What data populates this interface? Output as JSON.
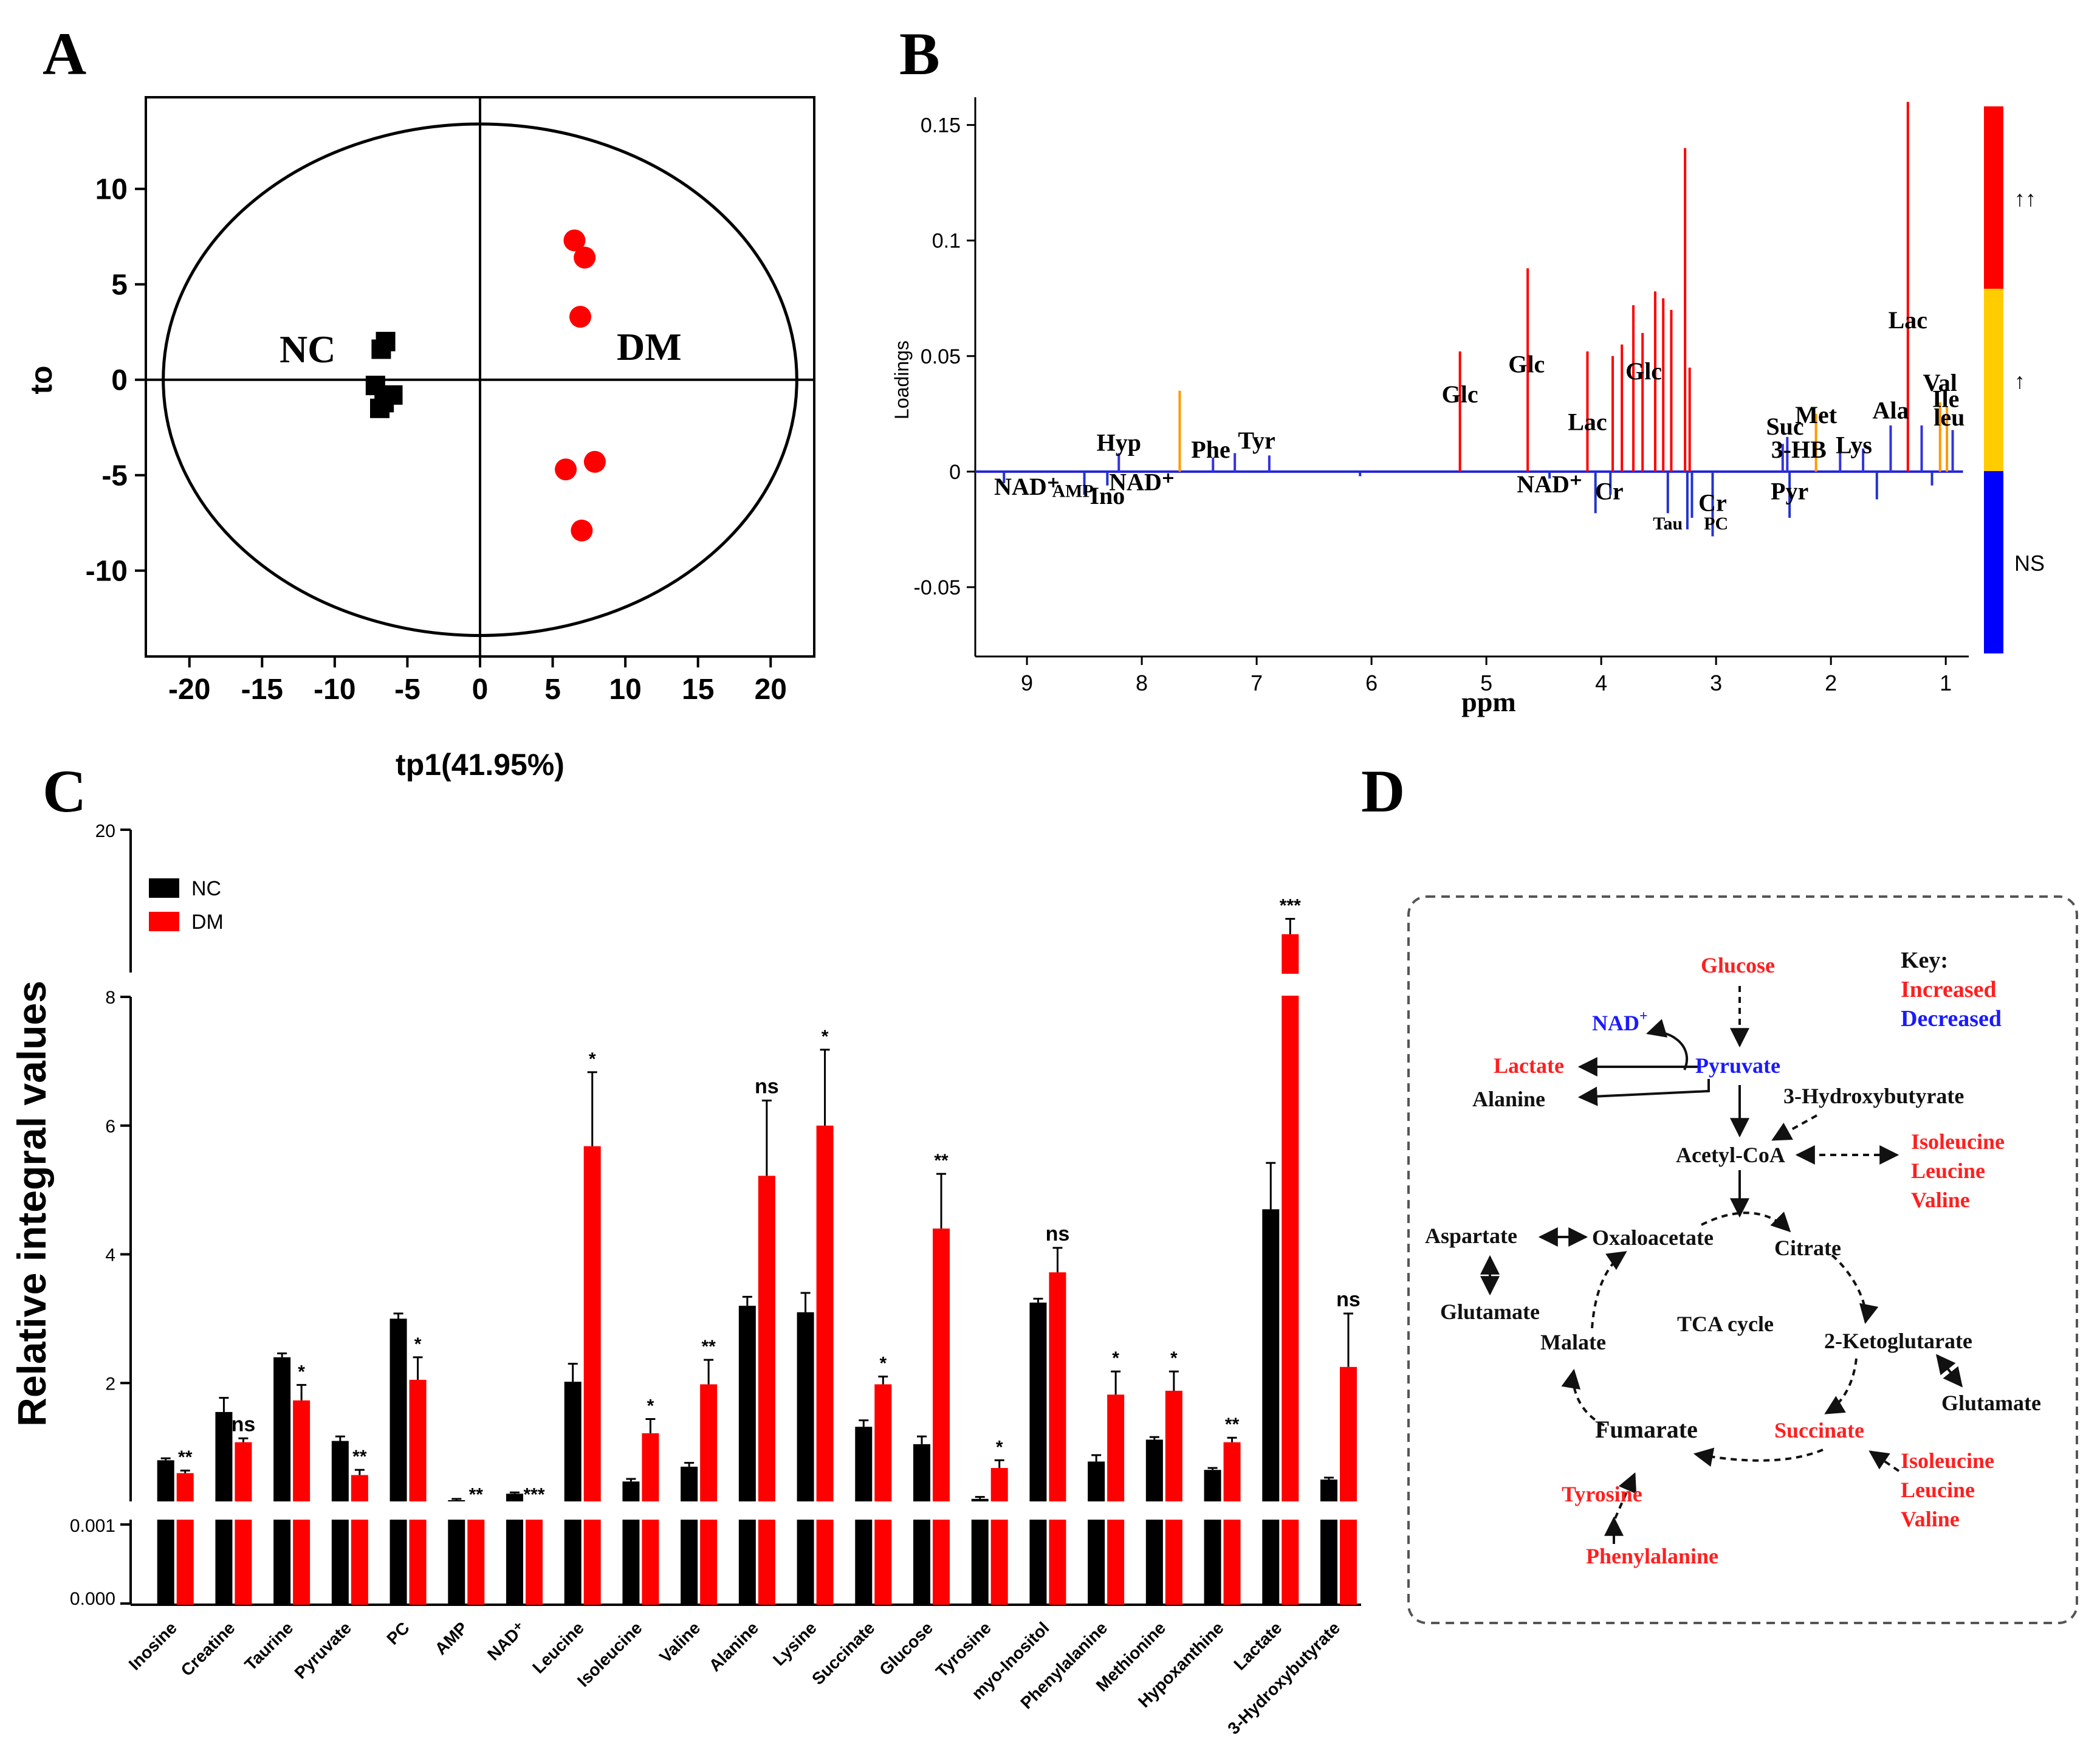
{
  "panels": {
    "A": "A",
    "B": "B",
    "C": "C",
    "D": "D"
  },
  "chart_data": [
    {
      "panel": "A",
      "type": "scatter",
      "xlabel": "tp1(41.95%)",
      "ylabel": "to",
      "xlim": [
        -23,
        23
      ],
      "ylim": [
        -14.5,
        14.8
      ],
      "xticks": [
        -20,
        -15,
        -10,
        -5,
        0,
        5,
        10,
        15,
        20
      ],
      "yticks": [
        -10,
        -5,
        0,
        5,
        10
      ],
      "ellipse": {
        "rx": 21.8,
        "ry": 13.4
      },
      "group_labels": {
        "nc": "NC",
        "dm": "DM"
      },
      "series": [
        {
          "name": "NC",
          "marker": "square",
          "color": "#000000",
          "points": [
            [
              -6.5,
              2.0
            ],
            [
              -6.8,
              1.6
            ],
            [
              -7.2,
              -0.3
            ],
            [
              -6.0,
              -0.8
            ],
            [
              -6.6,
              -1.2
            ],
            [
              -6.9,
              -1.5
            ]
          ]
        },
        {
          "name": "DM",
          "marker": "circle",
          "color": "#ff0000",
          "points": [
            [
              6.5,
              7.3
            ],
            [
              7.2,
              6.4
            ],
            [
              6.9,
              3.3
            ],
            [
              5.9,
              -4.7
            ],
            [
              7.9,
              -4.3
            ],
            [
              7.0,
              -7.9
            ]
          ]
        }
      ]
    },
    {
      "panel": "B",
      "type": "line",
      "xlabel": "ppm",
      "ylabel": "Loadings",
      "xlim": [
        9.45,
        0.8
      ],
      "ylim": [
        -0.08,
        0.162
      ],
      "xticks": [
        9,
        8,
        7,
        6,
        5,
        4,
        3,
        2,
        1
      ],
      "yticks": [
        -0.05,
        0,
        0.05,
        0.1,
        0.15
      ],
      "ytick_labels": [
        "-0.05",
        "0",
        "0.05",
        "0.1",
        "0.15"
      ],
      "colorbar": {
        "labels": [
          "↑↑",
          "↑",
          "NS"
        ],
        "colors": [
          "#ff0000",
          "#ffcc00",
          "#0000ff"
        ]
      },
      "peaks": [
        {
          "ppm": 8.2,
          "h": 0.008
        },
        {
          "ppm": 7.67,
          "h": 0.035
        },
        {
          "ppm": 7.38,
          "h": 0.006
        },
        {
          "ppm": 7.19,
          "h": 0.008
        },
        {
          "ppm": 6.89,
          "h": 0.007
        },
        {
          "ppm": 5.23,
          "h": 0.052
        },
        {
          "ppm": 4.64,
          "h": 0.088
        },
        {
          "ppm": 4.12,
          "h": 0.052
        },
        {
          "ppm": 3.9,
          "h": 0.05
        },
        {
          "ppm": 3.82,
          "h": 0.055
        },
        {
          "ppm": 3.72,
          "h": 0.072
        },
        {
          "ppm": 3.64,
          "h": 0.06
        },
        {
          "ppm": 3.53,
          "h": 0.078
        },
        {
          "ppm": 3.46,
          "h": 0.075
        },
        {
          "ppm": 3.39,
          "h": 0.07
        },
        {
          "ppm": 3.27,
          "h": 0.14
        },
        {
          "ppm": 3.23,
          "h": 0.045
        },
        {
          "ppm": 2.42,
          "h": 0.012
        },
        {
          "ppm": 2.38,
          "h": 0.015
        },
        {
          "ppm": 2.13,
          "h": 0.025
        },
        {
          "ppm": 1.92,
          "h": 0.012
        },
        {
          "ppm": 1.72,
          "h": 0.01
        },
        {
          "ppm": 1.48,
          "h": 0.02
        },
        {
          "ppm": 1.33,
          "h": 0.16
        },
        {
          "ppm": 1.21,
          "h": 0.02
        },
        {
          "ppm": 1.05,
          "h": 0.03
        },
        {
          "ppm": 0.99,
          "h": 0.028
        },
        {
          "ppm": 0.94,
          "h": 0.018
        }
      ],
      "dips": [
        {
          "ppm": 9.2,
          "h": -0.005
        },
        {
          "ppm": 8.5,
          "h": -0.01
        },
        {
          "ppm": 8.3,
          "h": -0.006
        },
        {
          "ppm": 6.1,
          "h": -0.002
        },
        {
          "ppm": 4.45,
          "h": -0.003
        },
        {
          "ppm": 4.05,
          "h": -0.018
        },
        {
          "ppm": 3.92,
          "h": -0.01
        },
        {
          "ppm": 3.42,
          "h": -0.018
        },
        {
          "ppm": 3.25,
          "h": -0.025
        },
        {
          "ppm": 3.21,
          "h": -0.02
        },
        {
          "ppm": 3.03,
          "h": -0.028
        },
        {
          "ppm": 2.36,
          "h": -0.02
        },
        {
          "ppm": 1.6,
          "h": -0.012
        },
        {
          "ppm": 1.12,
          "h": -0.006
        }
      ],
      "annotations": [
        {
          "text": "Hyp",
          "ppm": 8.2,
          "y": 0.009
        },
        {
          "text": "Phe",
          "ppm": 7.4,
          "y": 0.006
        },
        {
          "text": "Tyr",
          "ppm": 7.0,
          "y": 0.01
        },
        {
          "text": "Glc",
          "ppm": 5.23,
          "y": 0.03
        },
        {
          "text": "Glc",
          "ppm": 4.65,
          "y": 0.043
        },
        {
          "text": "Lac",
          "ppm": 4.12,
          "y": 0.018
        },
        {
          "text": "Glc",
          "ppm": 3.63,
          "y": 0.04
        },
        {
          "text": "3-HB",
          "ppm": 2.28,
          "y": 0.006
        },
        {
          "text": "Suc",
          "ppm": 2.4,
          "y": 0.016
        },
        {
          "text": "Met",
          "ppm": 2.13,
          "y": 0.021
        },
        {
          "text": "Lys",
          "ppm": 1.8,
          "y": 0.008
        },
        {
          "text": "Ala",
          "ppm": 1.48,
          "y": 0.023
        },
        {
          "text": "Lac",
          "ppm": 1.33,
          "y": 0.062
        },
        {
          "text": "Val",
          "ppm": 1.05,
          "y": 0.035
        },
        {
          "text": "Ile",
          "ppm": 1.0,
          "y": 0.028
        },
        {
          "text": "leu",
          "ppm": 0.97,
          "y": 0.02
        },
        {
          "text": "NAD⁺",
          "ppm": 9.0,
          "y": -0.01
        },
        {
          "text": "AMP",
          "ppm": 8.6,
          "y": -0.011
        },
        {
          "text": "Ino",
          "ppm": 8.3,
          "y": -0.014
        },
        {
          "text": "NAD⁺",
          "ppm": 8.0,
          "y": -0.008
        },
        {
          "text": "NAD⁺",
          "ppm": 4.45,
          "y": -0.009
        },
        {
          "text": "Cr",
          "ppm": 3.93,
          "y": -0.012
        },
        {
          "text": "Cr",
          "ppm": 3.03,
          "y": -0.017
        },
        {
          "text": "Tau",
          "ppm": 3.42,
          "y": -0.025
        },
        {
          "text": "PC",
          "ppm": 3.0,
          "y": -0.025
        },
        {
          "text": "Pyr",
          "ppm": 2.36,
          "y": -0.012
        }
      ]
    },
    {
      "panel": "C",
      "type": "bar",
      "ylabel": "Relative integral values",
      "axis_segments": {
        "lower": {
          "ticks": [
            "0.000",
            "0.001"
          ]
        },
        "middle": {
          "range": [
            0,
            8
          ],
          "ticks": [
            2,
            4,
            6,
            8
          ]
        },
        "upper": {
          "ticks": [
            20
          ]
        }
      },
      "categories": [
        "Inosine",
        "Creatine",
        "Taurine",
        "Pyruvate",
        "PC",
        "AMP",
        "NAD⁺",
        "Leucine",
        "Isoleucine",
        "Valine",
        "Alanine",
        "Lysine",
        "Succinate",
        "Glucose",
        "Tyrosine",
        "myo-Inositol",
        "Phenylalanine",
        "Methionine",
        "Hypoxanthine",
        "Lactate",
        "3-Hydroxybutyrate"
      ],
      "series": [
        {
          "name": "NC",
          "color": "#000000",
          "values": [
            0.8,
            1.55,
            2.4,
            1.1,
            3.0,
            0.18,
            0.28,
            2.02,
            0.47,
            0.7,
            3.2,
            3.1,
            1.32,
            1.05,
            0.2,
            3.25,
            0.78,
            1.12,
            0.65,
            4.7,
            0.5
          ],
          "errors": [
            0.03,
            0.22,
            0.06,
            0.07,
            0.08,
            0.02,
            0.02,
            0.28,
            0.04,
            0.06,
            0.14,
            0.3,
            0.1,
            0.12,
            0.03,
            0.06,
            0.1,
            0.04,
            0.03,
            0.72,
            0.03
          ]
        },
        {
          "name": "DM",
          "color": "#ff0000",
          "values": [
            0.6,
            1.08,
            1.73,
            0.57,
            2.05,
            0.05,
            0.05,
            5.68,
            1.22,
            1.98,
            5.22,
            6.0,
            1.98,
            4.4,
            0.68,
            3.72,
            1.82,
            1.88,
            1.08,
            12.5,
            2.25
          ],
          "errors": [
            0.04,
            0.06,
            0.24,
            0.08,
            0.35,
            0.01,
            0.01,
            1.15,
            0.22,
            0.38,
            1.17,
            1.18,
            0.12,
            0.85,
            0.12,
            0.38,
            0.36,
            0.3,
            0.07,
            1.1,
            0.83
          ]
        }
      ],
      "significance": [
        "**",
        "ns",
        "*",
        "**",
        "*",
        "**",
        "***",
        "*",
        "*",
        "**",
        "ns",
        "*",
        "*",
        "**",
        "*",
        "ns",
        "*",
        "*",
        "**",
        "***",
        "ns"
      ]
    }
  ],
  "pathway": {
    "key_title": "Key:",
    "key_increased": "Increased",
    "key_decreased": "Decreased",
    "nodes": {
      "glucose": "Glucose",
      "nad": "NAD",
      "nad_sup": "+",
      "pyruvate": "Pyruvate",
      "lactate": "Lactate",
      "alanine": "Alanine",
      "hydroxybutyrate": "3-Hydroxybutyrate",
      "acetylcoa": "Acetyl-CoA",
      "bcaa1_a": "Isoleucine",
      "bcaa1_b": "Leucine",
      "bcaa1_c": "Valine",
      "aspartate": "Aspartate",
      "oxaloacetate": "Oxaloacetate",
      "citrate": "Citrate",
      "glutamate1": "Glutamate",
      "tca": "TCA cycle",
      "malate": "Malate",
      "ketoglutarate": "2-Ketoglutarate",
      "glutamate2": "Glutamate",
      "fumarate": "Fumarate",
      "succinate": "Succinate",
      "bcaa2_a": "Isoleucine",
      "bcaa2_b": "Leucine",
      "bcaa2_c": "Valine",
      "tyrosine": "Tyrosine",
      "phenylalanine": "Phenylalanine"
    },
    "colors": {
      "increased": "#ff1f1f",
      "decreased": "#1a1aff",
      "neutral": "#111111"
    }
  }
}
